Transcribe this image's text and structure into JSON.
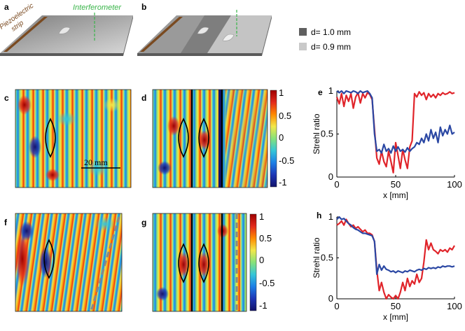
{
  "panels": {
    "a": {
      "label": "a",
      "piezo_text": "Piezoelectric strip",
      "interferometer_text": "Interferometer"
    },
    "b": {
      "label": "b"
    },
    "c": {
      "label": "c",
      "scalebar_text": "20 mm"
    },
    "d": {
      "label": "d"
    },
    "e": {
      "label": "e"
    },
    "f": {
      "label": "f"
    },
    "g": {
      "label": "g"
    },
    "h": {
      "label": "h"
    }
  },
  "legend": {
    "items": [
      {
        "label": "d= 1.0 mm",
        "color": "#5f5f5f"
      },
      {
        "label": "d= 0.9 mm",
        "color": "#c9c9c9"
      }
    ]
  },
  "colorbar": {
    "ticks": [
      "1",
      "0.5",
      "0",
      "-0.5",
      "-1"
    ],
    "colors": [
      "#9e0000",
      "#e32a1c",
      "#ff8a00",
      "#f2e84a",
      "#86e27a",
      "#35c6d8",
      "#1c7fe6",
      "#1d36b5",
      "#12126b"
    ]
  },
  "series_colors": {
    "red": "#e0242a",
    "blue": "#2a47a3"
  },
  "chart_data": [
    {
      "type": "line",
      "panel": "e",
      "xlabel": "x [mm]",
      "ylabel": "Strehl ratio",
      "xlim": [
        0,
        100
      ],
      "ylim": [
        0,
        1
      ],
      "xticks": [
        "0",
        "50",
        "100"
      ],
      "yticks": [
        "1",
        "0.5",
        "0"
      ],
      "grid": false,
      "series": [
        {
          "color": "red",
          "x": [
            0,
            2,
            4,
            6,
            8,
            10,
            12,
            14,
            16,
            18,
            20,
            22,
            24,
            26,
            28,
            30,
            32,
            34,
            36,
            38,
            40,
            42,
            44,
            46,
            48,
            50,
            52,
            54,
            56,
            58,
            60,
            62,
            64,
            66,
            68,
            70,
            72,
            74,
            76,
            78,
            80,
            82,
            84,
            86,
            88,
            90,
            92,
            94,
            96,
            98,
            100
          ],
          "y": [
            0.93,
            0.85,
            0.97,
            0.82,
            0.95,
            0.88,
            0.97,
            0.8,
            0.93,
            0.98,
            0.86,
            0.97,
            0.92,
            0.98,
            0.96,
            0.9,
            0.55,
            0.22,
            0.15,
            0.3,
            0.18,
            0.12,
            0.3,
            0.18,
            0.05,
            0.4,
            0.25,
            0.1,
            0.32,
            0.2,
            0.1,
            0.35,
            0.42,
            0.97,
            0.93,
            0.99,
            0.95,
            0.98,
            0.9,
            0.97,
            0.93,
            0.96,
            0.92,
            0.97,
            0.95,
            0.98,
            0.96,
            0.97,
            0.99,
            0.97,
            0.98
          ]
        },
        {
          "color": "blue",
          "x": [
            0,
            2,
            4,
            6,
            8,
            10,
            12,
            14,
            16,
            18,
            20,
            22,
            24,
            26,
            28,
            30,
            32,
            34,
            36,
            38,
            40,
            42,
            44,
            46,
            48,
            50,
            52,
            54,
            56,
            58,
            60,
            62,
            64,
            66,
            68,
            70,
            72,
            74,
            76,
            78,
            80,
            82,
            84,
            86,
            88,
            90,
            92,
            94,
            96,
            98,
            100
          ],
          "y": [
            1.0,
            0.98,
            1.0,
            0.97,
            1.0,
            0.99,
            0.98,
            1.0,
            0.99,
            0.97,
            1.0,
            0.98,
            0.99,
            1.0,
            0.97,
            0.92,
            0.5,
            0.3,
            0.32,
            0.28,
            0.38,
            0.3,
            0.33,
            0.28,
            0.36,
            0.3,
            0.35,
            0.3,
            0.32,
            0.29,
            0.34,
            0.3,
            0.33,
            0.35,
            0.4,
            0.38,
            0.45,
            0.4,
            0.5,
            0.42,
            0.55,
            0.45,
            0.52,
            0.4,
            0.58,
            0.48,
            0.55,
            0.5,
            0.6,
            0.5,
            0.52
          ]
        }
      ]
    },
    {
      "type": "line",
      "panel": "h",
      "xlabel": "x [mm]",
      "ylabel": "Strehl ratio",
      "xlim": [
        0,
        100
      ],
      "ylim": [
        0,
        1
      ],
      "xticks": [
        "0",
        "50",
        "100"
      ],
      "yticks": [
        "1",
        "0.5",
        "0"
      ],
      "grid": false,
      "series": [
        {
          "color": "red",
          "x": [
            0,
            2,
            4,
            6,
            8,
            10,
            12,
            14,
            16,
            18,
            20,
            22,
            24,
            26,
            28,
            30,
            32,
            34,
            36,
            38,
            40,
            42,
            44,
            46,
            48,
            50,
            52,
            54,
            56,
            58,
            60,
            62,
            64,
            66,
            68,
            70,
            72,
            74,
            76,
            78,
            80,
            82,
            84,
            86,
            88,
            90,
            92,
            94,
            96,
            98,
            100
          ],
          "y": [
            0.9,
            0.92,
            0.95,
            0.9,
            0.97,
            0.92,
            0.88,
            0.9,
            0.86,
            0.88,
            0.85,
            0.82,
            0.84,
            0.8,
            0.8,
            0.78,
            0.7,
            0.35,
            0.1,
            0.2,
            0.08,
            0.0,
            0.05,
            0.02,
            0.0,
            0.04,
            0.0,
            0.08,
            0.2,
            0.1,
            0.25,
            0.15,
            0.22,
            0.18,
            0.3,
            0.2,
            0.25,
            0.45,
            0.72,
            0.6,
            0.68,
            0.6,
            0.58,
            0.55,
            0.6,
            0.58,
            0.6,
            0.57,
            0.62,
            0.6,
            0.65
          ]
        },
        {
          "color": "blue",
          "x": [
            0,
            2,
            4,
            6,
            8,
            10,
            12,
            14,
            16,
            18,
            20,
            22,
            24,
            26,
            28,
            30,
            32,
            34,
            36,
            38,
            40,
            42,
            44,
            46,
            48,
            50,
            52,
            54,
            56,
            58,
            60,
            62,
            64,
            66,
            68,
            70,
            72,
            74,
            76,
            78,
            80,
            82,
            84,
            86,
            88,
            90,
            92,
            94,
            96,
            98,
            100
          ],
          "y": [
            0.97,
            1.0,
            0.97,
            0.98,
            0.95,
            0.92,
            0.9,
            0.87,
            0.85,
            0.84,
            0.82,
            0.8,
            0.8,
            0.79,
            0.78,
            0.77,
            0.7,
            0.3,
            0.42,
            0.35,
            0.4,
            0.36,
            0.35,
            0.33,
            0.34,
            0.32,
            0.34,
            0.33,
            0.32,
            0.34,
            0.33,
            0.35,
            0.34,
            0.33,
            0.35,
            0.36,
            0.35,
            0.37,
            0.36,
            0.38,
            0.37,
            0.38,
            0.37,
            0.39,
            0.38,
            0.4,
            0.39,
            0.4,
            0.4,
            0.39,
            0.4
          ]
        }
      ]
    }
  ]
}
